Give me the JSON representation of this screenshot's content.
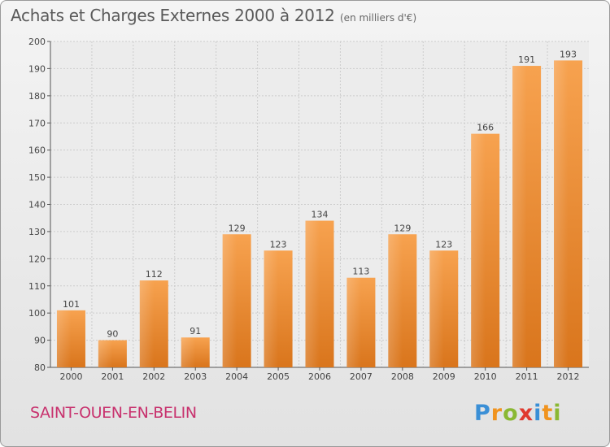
{
  "header": {
    "title": "Achats et Charges Externes 2000 à 2012",
    "subtitle": "(en milliers d'€)"
  },
  "footer": {
    "commune": "SAINT-OUEN-EN-BELIN",
    "logo_text": "Proxiti"
  },
  "colors": {
    "bar_top": "#f7a24f",
    "bar_bottom": "#d9751c",
    "commune": "#c8326e",
    "grid": "#cccccc"
  },
  "chart_data": {
    "type": "bar",
    "title": "Achats et Charges Externes 2000 à 2012",
    "subtitle": "(en milliers d'€)",
    "categories": [
      "2000",
      "2001",
      "2002",
      "2003",
      "2004",
      "2005",
      "2006",
      "2007",
      "2008",
      "2009",
      "2010",
      "2011",
      "2012"
    ],
    "values": [
      101,
      90,
      112,
      91,
      129,
      123,
      134,
      113,
      129,
      123,
      166,
      191,
      193
    ],
    "ylim": [
      80,
      200
    ],
    "yticks": [
      80,
      90,
      100,
      110,
      120,
      130,
      140,
      150,
      160,
      170,
      180,
      190,
      200
    ],
    "grid": true,
    "xlabel": "",
    "ylabel": ""
  }
}
